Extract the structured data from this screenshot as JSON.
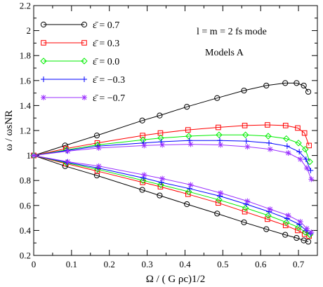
{
  "chart_data": {
    "type": "line",
    "xlim": [
      0,
      0.75
    ],
    "ylim": [
      0.2,
      2.2
    ],
    "x_ticks": [
      0,
      0.1,
      0.2,
      0.3,
      0.4,
      0.5,
      0.6,
      0.7
    ],
    "y_ticks": [
      0.2,
      0.4,
      0.6,
      0.8,
      1,
      1.2,
      1.4,
      1.6,
      1.8,
      2,
      2.2
    ],
    "x_tick_labels": [
      "0",
      "0.1",
      "0.2",
      "0.3",
      "0.4",
      "0.5",
      "0.6",
      "0.7"
    ],
    "y_tick_labels": [
      "0.2",
      "0.4",
      "0.6",
      "0.8",
      "1",
      "1.2",
      "1.4",
      "1.6",
      "1.8",
      "2",
      "2.2"
    ],
    "xlabel": "Ω / ( G ρc)1/2",
    "ylabel": "ω / ωsNR",
    "annotations": [
      "l = m = 2  fs mode",
      "Models A"
    ],
    "legend_position": "top-left",
    "grid": false,
    "series": [
      {
        "name": "ε̄ =  0.7",
        "color": "#000000",
        "marker": "circle",
        "upper": {
          "x": [
            0,
            0.083,
            0.167,
            0.287,
            0.333,
            0.405,
            0.485,
            0.556,
            0.615,
            0.665,
            0.695,
            0.714,
            0.726
          ],
          "y": [
            1.0,
            1.08,
            1.16,
            1.28,
            1.32,
            1.39,
            1.46,
            1.52,
            1.56,
            1.58,
            1.58,
            1.56,
            1.51
          ]
        },
        "lower": {
          "x": [
            0,
            0.083,
            0.167,
            0.287,
            0.333,
            0.405,
            0.485,
            0.556,
            0.615,
            0.665,
            0.695,
            0.714,
            0.726
          ],
          "y": [
            1.0,
            0.915,
            0.84,
            0.725,
            0.68,
            0.61,
            0.535,
            0.465,
            0.41,
            0.365,
            0.34,
            0.32,
            0.31
          ]
        }
      },
      {
        "name": "ε̄ =  0.3",
        "color": "#ff0000",
        "marker": "square",
        "upper": {
          "x": [
            0,
            0.085,
            0.168,
            0.288,
            0.335,
            0.408,
            0.488,
            0.558,
            0.618,
            0.666,
            0.698,
            0.716,
            0.728
          ],
          "y": [
            1.0,
            1.055,
            1.1,
            1.16,
            1.18,
            1.205,
            1.225,
            1.24,
            1.245,
            1.24,
            1.22,
            1.18,
            1.08
          ]
        },
        "lower": {
          "x": [
            0,
            0.085,
            0.168,
            0.288,
            0.335,
            0.408,
            0.488,
            0.558,
            0.618,
            0.666,
            0.698,
            0.716,
            0.728
          ],
          "y": [
            1.0,
            0.935,
            0.875,
            0.785,
            0.75,
            0.69,
            0.62,
            0.55,
            0.49,
            0.44,
            0.4,
            0.37,
            0.355
          ]
        }
      },
      {
        "name": "ε̄ =  0.0",
        "color": "#00ee00",
        "marker": "diamond",
        "upper": {
          "x": [
            0,
            0.087,
            0.169,
            0.289,
            0.336,
            0.41,
            0.49,
            0.56,
            0.62,
            0.668,
            0.7,
            0.718,
            0.73
          ],
          "y": [
            1.0,
            1.045,
            1.085,
            1.125,
            1.14,
            1.155,
            1.165,
            1.165,
            1.155,
            1.135,
            1.1,
            1.05,
            0.95
          ]
        },
        "lower": {
          "x": [
            0,
            0.087,
            0.169,
            0.289,
            0.336,
            0.41,
            0.49,
            0.56,
            0.62,
            0.668,
            0.7,
            0.718,
            0.73
          ],
          "y": [
            1.0,
            0.94,
            0.89,
            0.8,
            0.765,
            0.71,
            0.645,
            0.58,
            0.52,
            0.465,
            0.425,
            0.385,
            0.365
          ]
        }
      },
      {
        "name": "ε̄ = −0.3",
        "color": "#0000ff",
        "marker": "plus",
        "upper": {
          "x": [
            0,
            0.088,
            0.17,
            0.29,
            0.337,
            0.412,
            0.492,
            0.562,
            0.622,
            0.67,
            0.702,
            0.72,
            0.732
          ],
          "y": [
            1.0,
            1.04,
            1.075,
            1.1,
            1.11,
            1.12,
            1.12,
            1.115,
            1.1,
            1.075,
            1.03,
            0.97,
            0.88
          ]
        },
        "lower": {
          "x": [
            0,
            0.088,
            0.17,
            0.29,
            0.337,
            0.412,
            0.492,
            0.562,
            0.622,
            0.67,
            0.702,
            0.72,
            0.732
          ],
          "y": [
            1.0,
            0.945,
            0.9,
            0.82,
            0.785,
            0.735,
            0.675,
            0.61,
            0.55,
            0.495,
            0.45,
            0.4,
            0.375
          ]
        }
      },
      {
        "name": "ε̄ = −0.7",
        "color": "#9b30ff",
        "marker": "star",
        "upper": {
          "x": [
            0,
            0.09,
            0.172,
            0.292,
            0.34,
            0.415,
            0.494,
            0.565,
            0.625,
            0.673,
            0.705,
            0.722,
            0.734
          ],
          "y": [
            1.0,
            1.035,
            1.06,
            1.08,
            1.085,
            1.09,
            1.085,
            1.07,
            1.05,
            1.02,
            0.97,
            0.9,
            0.81
          ]
        },
        "lower": {
          "x": [
            0,
            0.09,
            0.172,
            0.292,
            0.34,
            0.415,
            0.494,
            0.565,
            0.625,
            0.673,
            0.705,
            0.722,
            0.734
          ],
          "y": [
            1.0,
            0.95,
            0.915,
            0.845,
            0.815,
            0.765,
            0.7,
            0.635,
            0.57,
            0.52,
            0.47,
            0.415,
            0.385
          ]
        }
      }
    ]
  }
}
